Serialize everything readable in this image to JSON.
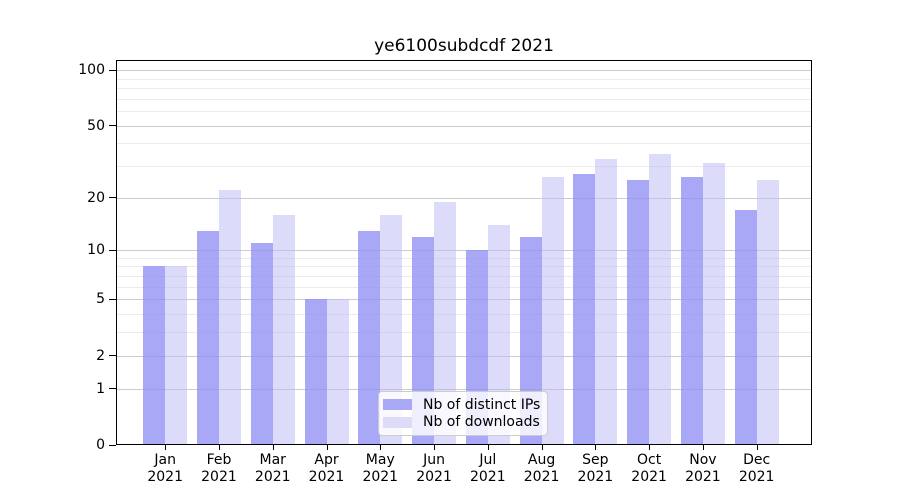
{
  "chart_data": {
    "type": "bar",
    "title": "ye6100subdcdf 2021",
    "categories": [
      "Jan",
      "Feb",
      "Mar",
      "Apr",
      "May",
      "Jun",
      "Jul",
      "Aug",
      "Sep",
      "Oct",
      "Nov",
      "Dec"
    ],
    "category_year": "2021",
    "series": [
      {
        "name": "Nb of distinct IPs",
        "values": [
          8,
          13,
          11,
          5,
          13,
          12,
          10,
          12,
          27,
          25,
          26,
          17
        ],
        "fill": "rgba(146,146,245,0.8)",
        "swatch": "#a8a8f7"
      },
      {
        "name": "Nb of downloads",
        "values": [
          8,
          22,
          16,
          5,
          16,
          19,
          14,
          26,
          33,
          35,
          31,
          25
        ],
        "fill": "rgba(185,185,245,0.5)",
        "swatch": "#dcdcf9"
      }
    ],
    "yscale": "log1p",
    "y_ticks": [
      0,
      1,
      2,
      5,
      10,
      20,
      50,
      100
    ],
    "y_minor_ticks": [
      3,
      4,
      6,
      7,
      8,
      9,
      30,
      40,
      60,
      70,
      80,
      90
    ],
    "ylim": [
      0,
      113.3
    ],
    "grid": {
      "on": true,
      "major_color": "#cccccc",
      "minor_color": "#ebebeb"
    },
    "legend": {
      "position": "lower-center"
    },
    "axis_color": "#000000"
  }
}
